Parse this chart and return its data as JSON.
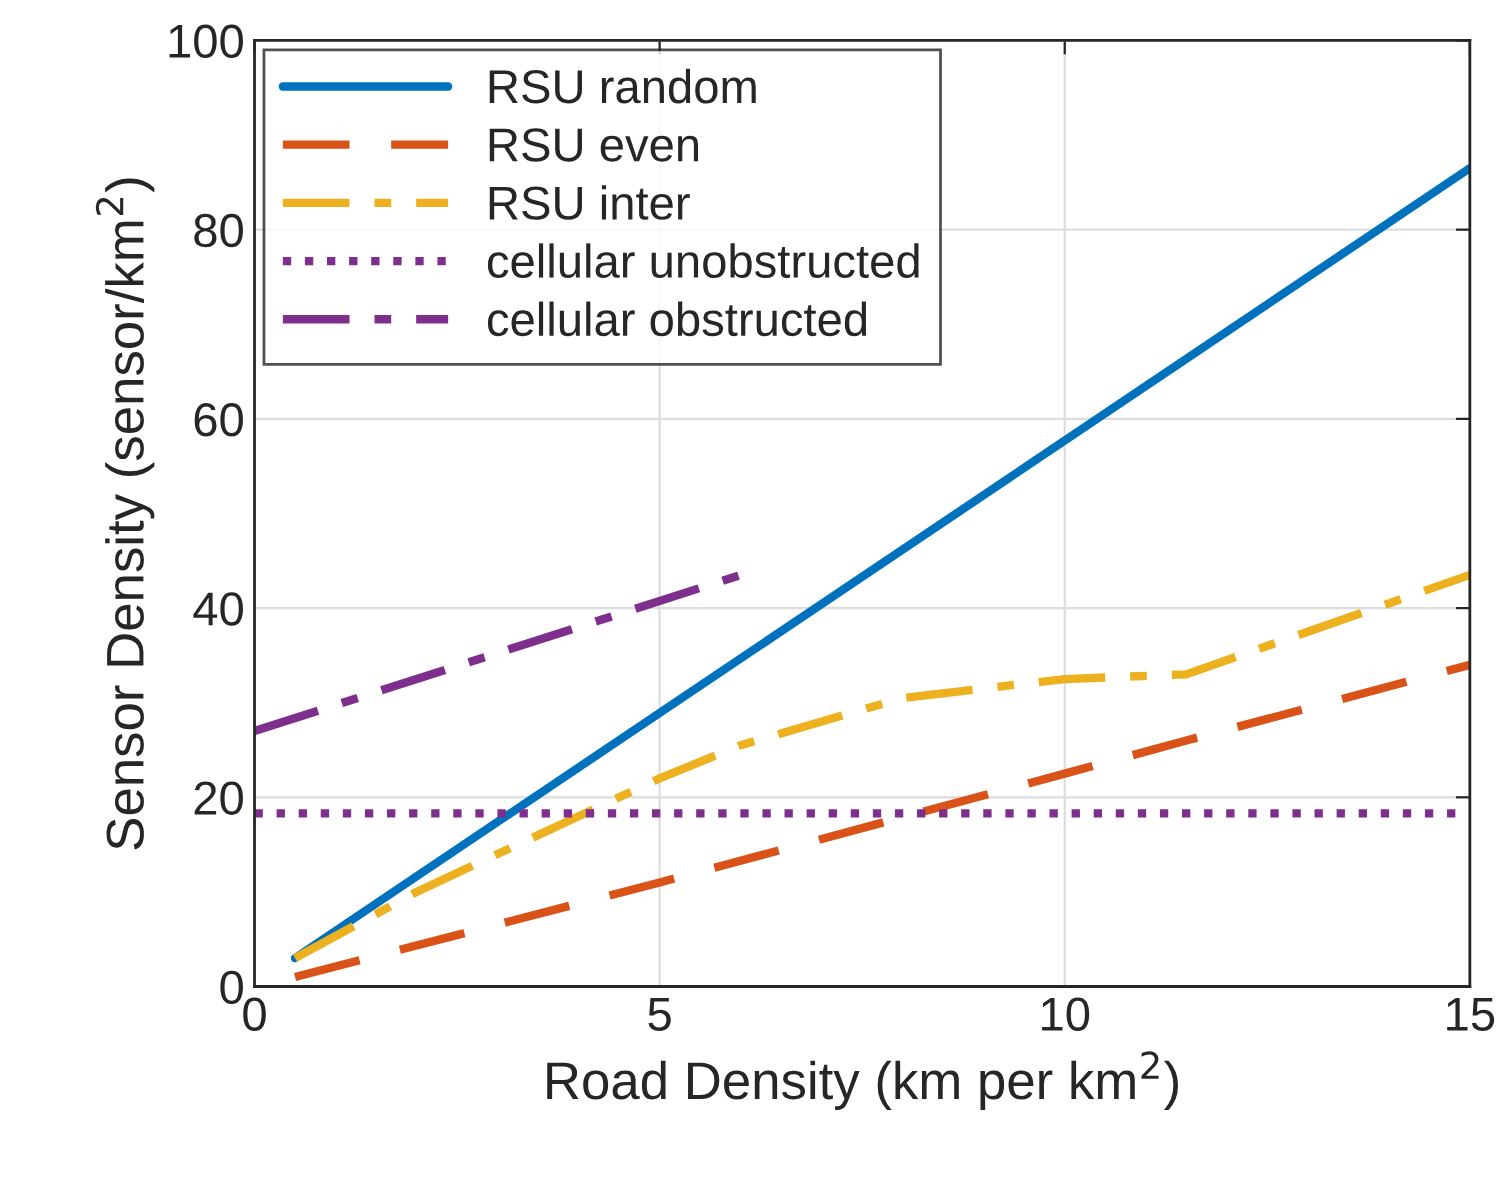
{
  "chart_data": {
    "type": "line",
    "xlabel": "Road Density (km per km$^{2}$)",
    "ylabel": "Sensor Density (sensor/km$^{2}$)",
    "xlim": [
      0,
      15
    ],
    "ylim": [
      0,
      100
    ],
    "xticks": [
      0,
      5,
      10,
      15
    ],
    "yticks": [
      0,
      20,
      40,
      60,
      80,
      100
    ],
    "grid": true,
    "legend": "top left",
    "marker": "none",
    "series": [
      {
        "name": "RSU random",
        "color": "#0072bd",
        "line_style": "solid",
        "x": [
          0.5,
          15
        ],
        "values": [
          3,
          86.5
        ]
      },
      {
        "name": "RSU even",
        "color": "#d95319",
        "line_style": "dashed",
        "x": [
          0.5,
          5,
          10,
          11.5,
          15
        ],
        "values": [
          1,
          11,
          22.5,
          26,
          34
        ]
      },
      {
        "name": "RSU inter",
        "color": "#edb120",
        "line_style": "dashdot",
        "x": [
          0.5,
          2,
          4,
          5,
          6,
          8,
          10,
          11.5,
          15
        ],
        "values": [
          3,
          10,
          18,
          22,
          25.5,
          30.5,
          32.5,
          33,
          43.5
        ]
      },
      {
        "name": "cellular unobstructed",
        "color": "#7e2f8e",
        "line_style": "dotted",
        "x": [
          0,
          15
        ],
        "values": [
          18.3,
          18.3
        ]
      },
      {
        "name": "cellular obstructed",
        "color": "#7e2f8e",
        "line_style": "dashdot",
        "x": [
          0,
          6
        ],
        "values": [
          27,
          43.5
        ]
      }
    ]
  }
}
